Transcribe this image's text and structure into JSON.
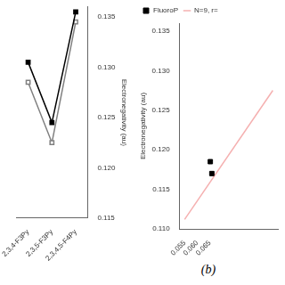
{
  "chart_data": [
    {
      "type": "line",
      "categories": [
        "2,3,4-F3Py",
        "2,3,5-F3Py",
        "2,3,4,5-F4Py"
      ],
      "series": [
        {
          "color": "black",
          "marker": "square",
          "values": [
            0.1305,
            0.1245,
            0.1355
          ]
        },
        {
          "color": "gray",
          "marker": "square-open",
          "values": [
            0.1285,
            0.1225,
            0.1345
          ]
        }
      ],
      "ylabel": "Electronegativity (au)",
      "ylim": [
        0.115,
        0.136
      ],
      "yticks": [
        0.115,
        {
          "value": 0.12,
          "label": "0.120"
        },
        0.125,
        {
          "value": 0.13,
          "label": "0.130"
        },
        0.135
      ],
      "grid": false
    },
    {
      "type": "scatter",
      "series": [
        {
          "name": "FluoroP",
          "color": "black",
          "marker": "square",
          "x": [
            0.0652,
            0.0658
          ],
          "values": [
            0.1185,
            0.117
          ]
        },
        {
          "name": "N=9, r=",
          "type": "line",
          "color": "#f5b0b0",
          "x": [
            0.055,
            0.09
          ],
          "values": [
            0.1112,
            0.1275
          ]
        }
      ],
      "ylabel": "Electronegativity (au)",
      "ylim": [
        0.11,
        0.136
      ],
      "yticks": [
        {
          "value": 0.11,
          "label": "0.110"
        },
        0.115,
        {
          "value": 0.12,
          "label": "0.120"
        },
        0.125,
        {
          "value": 0.13,
          "label": "0.130"
        },
        0.135
      ],
      "xlim": [
        0.053,
        0.092
      ],
      "xticks": [
        0.055,
        {
          "value": 0.06,
          "label": "0.060"
        },
        0.065
      ],
      "grid": false,
      "legend": "upper left",
      "annotations": [
        "(b)"
      ]
    }
  ]
}
